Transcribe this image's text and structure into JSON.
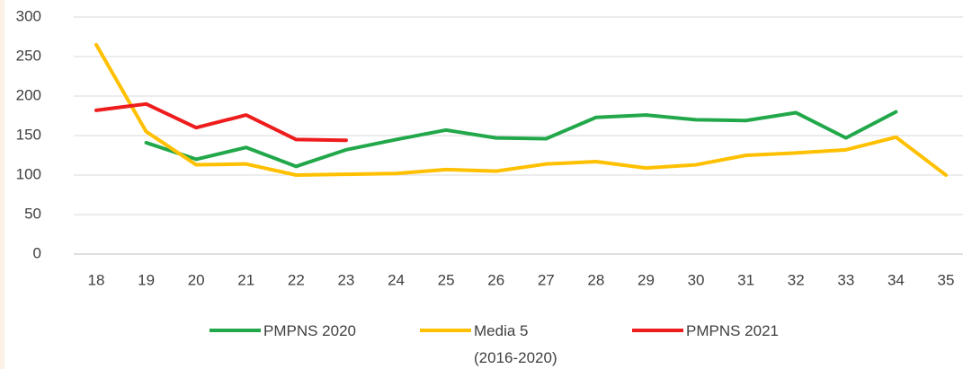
{
  "chart_data": {
    "type": "line",
    "x": [
      18,
      19,
      20,
      21,
      22,
      23,
      24,
      25,
      26,
      27,
      28,
      29,
      30,
      31,
      32,
      33,
      34,
      35
    ],
    "xlim": [
      18,
      35
    ],
    "xticks": [
      18,
      19,
      20,
      21,
      22,
      23,
      24,
      25,
      26,
      27,
      28,
      29,
      30,
      31,
      32,
      33,
      34,
      35
    ],
    "ylim": [
      0,
      300
    ],
    "yticks": [
      0,
      50,
      100,
      150,
      200,
      250,
      300
    ],
    "grid": true,
    "legend": "bottom",
    "series": [
      {
        "name": "PMPNS 2020",
        "color": "#22a84a",
        "values": [
          null,
          141,
          120,
          135,
          111,
          132,
          145,
          157,
          147,
          146,
          173,
          176,
          170,
          169,
          179,
          147,
          180,
          null
        ]
      },
      {
        "name": "Media 5 (2016-2020)",
        "color": "#ffc000",
        "values": [
          265,
          155,
          113,
          114,
          100,
          101,
          102,
          107,
          105,
          114,
          117,
          109,
          113,
          125,
          128,
          132,
          148,
          100
        ]
      },
      {
        "name": "PMPNS 2021",
        "color": "#ee1c1c",
        "values": [
          182,
          190,
          160,
          176,
          145,
          144,
          null,
          null,
          null,
          null,
          null,
          null,
          null,
          null,
          null,
          null,
          null,
          null
        ]
      }
    ]
  }
}
